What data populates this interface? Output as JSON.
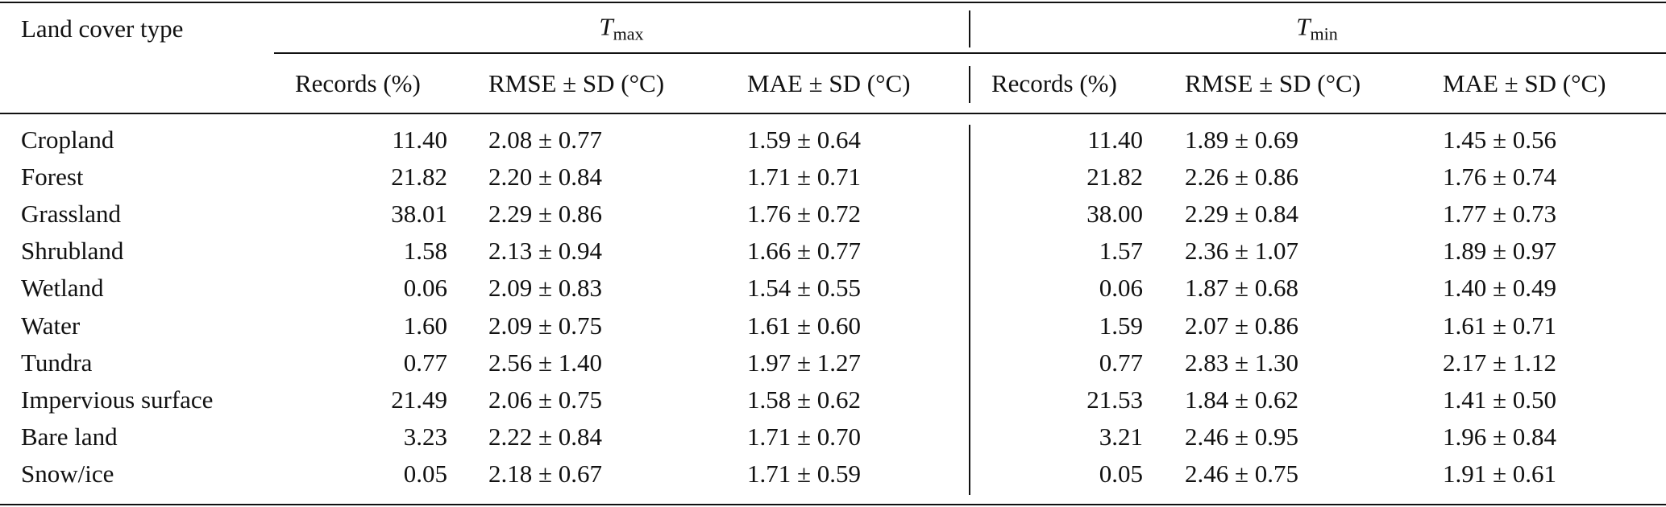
{
  "table": {
    "header": {
      "first": "Land cover type",
      "groups": [
        {
          "symbol": "T",
          "subscript": "max"
        },
        {
          "symbol": "T",
          "subscript": "min"
        }
      ],
      "columns": [
        "Records (%)",
        "RMSE ± SD (°C)",
        "MAE ± SD (°C)",
        "Records (%)",
        "RMSE ± SD (°C)",
        "MAE ± SD (°C)"
      ]
    },
    "rows": [
      {
        "name": "Cropland",
        "cells": [
          "11.40",
          "2.08 ± 0.77",
          "1.59 ± 0.64",
          "11.40",
          "1.89 ± 0.69",
          "1.45 ± 0.56"
        ]
      },
      {
        "name": "Forest",
        "cells": [
          "21.82",
          "2.20 ± 0.84",
          "1.71 ± 0.71",
          "21.82",
          "2.26 ± 0.86",
          "1.76 ± 0.74"
        ]
      },
      {
        "name": "Grassland",
        "cells": [
          "38.01",
          "2.29 ± 0.86",
          "1.76 ± 0.72",
          "38.00",
          "2.29 ± 0.84",
          "1.77 ± 0.73"
        ]
      },
      {
        "name": "Shrubland",
        "cells": [
          "1.58",
          "2.13 ± 0.94",
          "1.66 ± 0.77",
          "1.57",
          "2.36 ± 1.07",
          "1.89 ± 0.97"
        ]
      },
      {
        "name": "Wetland",
        "cells": [
          "0.06",
          "2.09 ± 0.83",
          "1.54 ± 0.55",
          "0.06",
          "1.87 ± 0.68",
          "1.40 ± 0.49"
        ]
      },
      {
        "name": "Water",
        "cells": [
          "1.60",
          "2.09 ± 0.75",
          "1.61 ± 0.60",
          "1.59",
          "2.07 ± 0.86",
          "1.61 ± 0.71"
        ]
      },
      {
        "name": "Tundra",
        "cells": [
          "0.77",
          "2.56 ± 1.40",
          "1.97 ± 1.27",
          "0.77",
          "2.83 ± 1.30",
          "2.17 ± 1.12"
        ]
      },
      {
        "name": "Impervious surface",
        "cells": [
          "21.49",
          "2.06 ± 0.75",
          "1.58 ± 0.62",
          "21.53",
          "1.84 ± 0.62",
          "1.41 ± 0.50"
        ]
      },
      {
        "name": "Bare land",
        "cells": [
          "3.23",
          "2.22 ± 0.84",
          "1.71 ± 0.70",
          "3.21",
          "2.46 ± 0.95",
          "1.96 ± 0.84"
        ]
      },
      {
        "name": "Snow/ice",
        "cells": [
          "0.05",
          "2.18 ± 0.67",
          "1.71 ± 0.59",
          "0.05",
          "2.46 ± 0.75",
          "1.91 ± 0.61"
        ]
      }
    ]
  }
}
